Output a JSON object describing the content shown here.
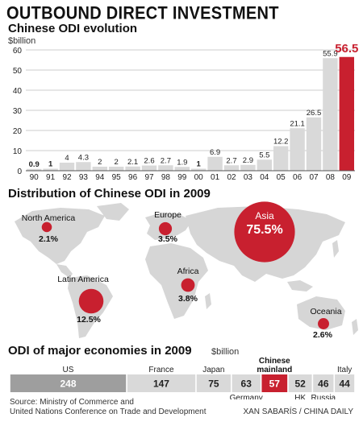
{
  "header": {
    "title": "OUTBOUND DIRECT INVESTMENT"
  },
  "chart_data": [
    {
      "type": "bar",
      "title": "Chinese ODI evolution",
      "ylabel": "$billion",
      "categories": [
        "90",
        "91",
        "92",
        "93",
        "94",
        "95",
        "96",
        "97",
        "98",
        "99",
        "00",
        "01",
        "02",
        "03",
        "04",
        "05",
        "06",
        "07",
        "08",
        "09"
      ],
      "values": [
        0.9,
        1,
        4,
        4.3,
        2,
        2,
        2.1,
        2.6,
        2.7,
        1.9,
        1,
        6.9,
        2.7,
        2.9,
        5.5,
        12.2,
        21.1,
        26.5,
        55.9,
        56.5
      ],
      "value_labels": [
        "0.9",
        "1",
        "4",
        "4.3",
        "2",
        "2",
        "2.1",
        "2.6",
        "2.7",
        "1.9",
        "1",
        "6.9",
        "2.7",
        "2.9",
        "5.5",
        "12.2",
        "21.1",
        "26.5",
        "55.9",
        "56.5"
      ],
      "bold_labels": [
        "0.9",
        "1"
      ],
      "highlight_category": "09",
      "yticks": [
        0,
        10,
        20,
        30,
        40,
        50,
        60
      ],
      "ylim": [
        0,
        60
      ],
      "grid": true,
      "colors": {
        "bar": "#d9d9d9",
        "highlight": "#c8202f",
        "grid": "#9a9a9a"
      }
    },
    {
      "type": "bubble-map",
      "title": "Distribution of Chinese ODI in 2009",
      "regions": [
        {
          "name": "Asia",
          "share": 75.5,
          "label": "75.5%"
        },
        {
          "name": "North America",
          "share": 2.1,
          "label": "2.1%"
        },
        {
          "name": "Europe",
          "share": 3.5,
          "label": "3.5%"
        },
        {
          "name": "Africa",
          "share": 3.8,
          "label": "3.8%"
        },
        {
          "name": "Latin America",
          "share": 12.5,
          "label": "12.5%"
        },
        {
          "name": "Oceania",
          "share": 2.6,
          "label": "2.6%"
        }
      ],
      "colors": {
        "bubble": "#c8202f",
        "land": "#d6d6d6"
      }
    },
    {
      "type": "bar",
      "title": "ODI of major economies in 2009",
      "ylabel": "$billion",
      "categories": [
        "US",
        "France",
        "Japan",
        "Germany",
        "Chinese mainland",
        "HK",
        "Russia",
        "Italy"
      ],
      "display_names": [
        "US",
        "France",
        "Japan",
        "Germany",
        "Chinese\nmainland",
        "HK",
        "Russia",
        "Italy"
      ],
      "values": [
        248,
        147,
        75,
        63,
        57,
        52,
        46,
        44
      ],
      "highlight_category": "Chinese mainland",
      "colors": {
        "large": "#9e9e9e",
        "small": "#d9d9d9",
        "highlight": "#c8202f"
      }
    }
  ],
  "footer": {
    "source_line1": "Source: Ministry of Commerce and",
    "source_line2": "United Nations Conference on Trade and Development",
    "credit": "XAN SABARÍS / CHINA DAILY"
  }
}
